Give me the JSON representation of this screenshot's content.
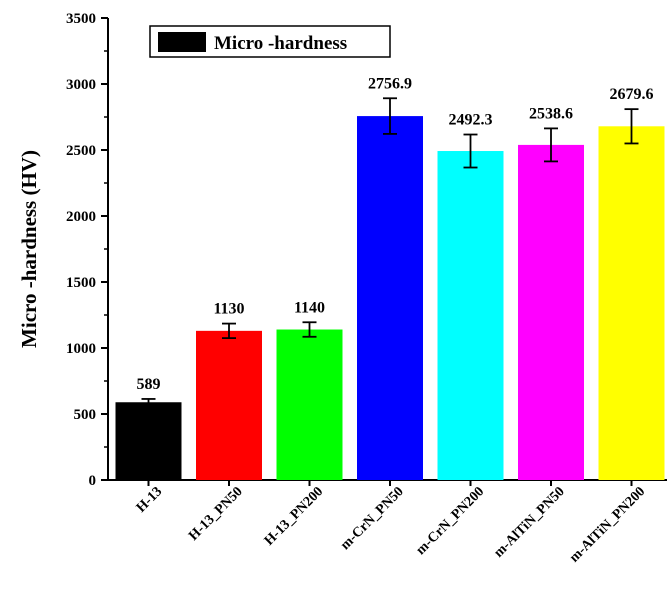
{
  "chart_data": {
    "type": "bar",
    "title": "",
    "xlabel": "",
    "ylabel": "Micro -hardness (HV)",
    "ylim": [
      0,
      3500
    ],
    "yticks": [
      0,
      500,
      1000,
      1500,
      2000,
      2500,
      3000,
      3500
    ],
    "grid": false,
    "legend": {
      "placement": "top-left",
      "entries": [
        "Micro -hardness"
      ]
    },
    "categories": [
      "H-13",
      "H-13_PN50",
      "H-13_PN200",
      "m-CrN_PN50",
      "m-CrN_PN200",
      "m-AlTiN_PN50",
      "m-AlTiN_PN200"
    ],
    "series": [
      {
        "name": "Micro -hardness",
        "values": [
          589,
          1130,
          1140,
          2756.9,
          2492.3,
          2538.6,
          2679.6
        ]
      }
    ],
    "data_labels": [
      "589",
      "1130",
      "1140",
      "2756.9",
      "2492.3",
      "2538.6",
      "2679.6"
    ],
    "error": [
      25,
      55,
      55,
      135,
      125,
      125,
      130
    ],
    "colors": [
      "#000000",
      "#ff0000",
      "#00ff00",
      "#0000ff",
      "#00ffff",
      "#ff00ff",
      "#ffff00"
    ],
    "legend_color": "#000000"
  }
}
